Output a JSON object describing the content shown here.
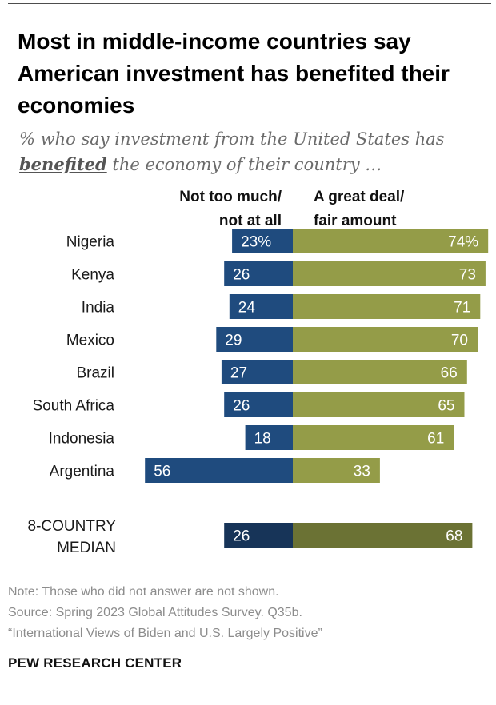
{
  "title": "Most in middle-income countries say American investment has benefited their economies",
  "subtitle": {
    "prefix": "% who say investment from the United States has",
    "emphasis": "benefited",
    "suffix": "the economy of their country …"
  },
  "notes": {
    "note": "Note: Those who did not answer are not shown.",
    "source": "Source: Spring 2023 Global Attitudes Survey. Q35b.",
    "report": "“International Views of Biden and U.S. Largely Positive”"
  },
  "brand": "PEW RESEARCH CENTER",
  "colors": {
    "negative": "#1f4b7e",
    "positive": "#949c48",
    "median_negative": "#173458",
    "median_positive": "#6b7234"
  },
  "chart_data": {
    "type": "bar",
    "orientation": "horizontal-diverging",
    "series": [
      {
        "name": "Not too much/\nnot at all",
        "values": [
          23,
          26,
          24,
          29,
          27,
          26,
          18,
          56,
          26
        ]
      },
      {
        "name": "A great deal/\nfair amount",
        "values": [
          74,
          73,
          71,
          70,
          66,
          65,
          61,
          33,
          68
        ]
      }
    ],
    "categories": [
      "Nigeria",
      "Kenya",
      "India",
      "Mexico",
      "Brazil",
      "South Africa",
      "Indonesia",
      "Argentina",
      "8-COUNTRY\nMEDIAN"
    ],
    "value_labels": [
      [
        "23%",
        "26",
        "24",
        "29",
        "27",
        "26",
        "18",
        "56",
        "26"
      ],
      [
        "74%",
        "73",
        "71",
        "70",
        "66",
        "65",
        "61",
        "33",
        "68"
      ]
    ],
    "median_index": 8,
    "xlim": [
      -60,
      80
    ]
  }
}
